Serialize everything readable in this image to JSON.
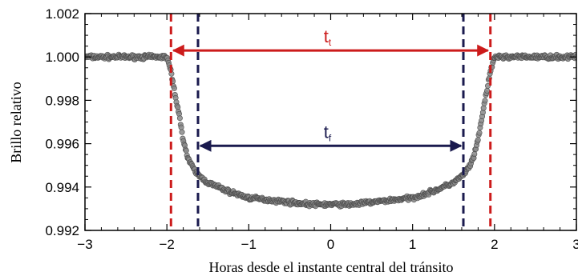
{
  "chart_data": {
    "type": "scatter",
    "title": "",
    "xlabel": "Horas desde el instante central del tránsito",
    "ylabel": "Brillo relativo",
    "xlim": [
      -3,
      3
    ],
    "ylim": [
      0.992,
      1.002
    ],
    "xticks": [
      -3,
      -2,
      -1,
      0,
      1,
      2,
      3
    ],
    "xtick_labels": [
      "−3",
      "−2",
      "−1",
      "0",
      "1",
      "2",
      "3"
    ],
    "yticks": [
      0.992,
      0.994,
      0.996,
      0.998,
      1.0,
      1.002
    ],
    "ytick_labels": [
      "0.992",
      "0.994",
      "0.996",
      "0.998",
      "1.000",
      "1.002"
    ],
    "grid": false,
    "legend": "none",
    "series": [
      {
        "x": [
          -3.0,
          -2.5,
          -2.0,
          -1.95,
          -1.9,
          -1.85,
          -1.8,
          -1.75,
          -1.7,
          -1.65,
          -1.6,
          -1.5,
          -1.25,
          -1.0,
          -0.75,
          -0.5,
          -0.25,
          0.0,
          0.25,
          0.5,
          0.75,
          1.0,
          1.25,
          1.5,
          1.6,
          1.65,
          1.7,
          1.75,
          1.8,
          1.85,
          1.9,
          1.95,
          2.0,
          2.5,
          3.0
        ],
        "y": [
          1.0,
          1.0,
          1.0,
          0.9993,
          0.9983,
          0.9973,
          0.9962,
          0.9954,
          0.995,
          0.9947,
          0.9945,
          0.9942,
          0.9938,
          0.9935,
          0.9934,
          0.9933,
          0.9932,
          0.9932,
          0.9932,
          0.9933,
          0.9934,
          0.9935,
          0.9938,
          0.9942,
          0.9945,
          0.9947,
          0.995,
          0.9954,
          0.9962,
          0.9973,
          0.9983,
          0.9993,
          1.0,
          1.0,
          1.0
        ]
      }
    ],
    "vlines": [
      {
        "x": -1.95,
        "color": "#cc1b1b",
        "style": "dashed"
      },
      {
        "x": 1.95,
        "color": "#cc1b1b",
        "style": "dashed"
      },
      {
        "x": -1.62,
        "color": "#1a1a4e",
        "style": "dashed"
      },
      {
        "x": 1.62,
        "color": "#1a1a4e",
        "style": "dashed"
      }
    ],
    "annotations": [
      {
        "label_main": "t",
        "label_sub": "t",
        "x_from": -1.95,
        "x_to": 1.95,
        "y": 1.0003,
        "color": "#cc1b1b"
      },
      {
        "label_main": "t",
        "label_sub": "f",
        "x_from": -1.62,
        "x_to": 1.62,
        "y": 0.9959,
        "color": "#1a1a4e"
      }
    ],
    "marker_color": "#8a8a8a",
    "marker_edge": "#4a4a4a"
  }
}
